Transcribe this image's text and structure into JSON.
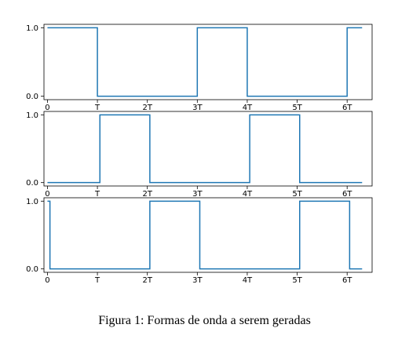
{
  "figure": {
    "caption": "Figura 1: Formas de onda a serem geradas"
  },
  "colors": {
    "line": "#1f77b4",
    "axes": "#000000",
    "background": "#ffffff"
  },
  "chart_data": [
    {
      "type": "line",
      "step": true,
      "x_ticks": [
        "0",
        "T",
        "2T",
        "3T",
        "4T",
        "5T",
        "6T"
      ],
      "y_ticks": [
        "0.0",
        "1.0"
      ],
      "xlim": [
        -0.07,
        6.5
      ],
      "ylim": [
        -0.05,
        1.05
      ],
      "series": [
        {
          "x": [
            0,
            1,
            1,
            3,
            3,
            4,
            4,
            6,
            6,
            6.3
          ],
          "y": [
            1,
            1,
            0,
            0,
            1,
            1,
            0,
            0,
            1,
            1
          ]
        }
      ]
    },
    {
      "type": "line",
      "step": true,
      "x_ticks": [
        "0",
        "T",
        "2T",
        "3T",
        "4T",
        "5T",
        "6T"
      ],
      "y_ticks": [
        "0.0",
        "1.0"
      ],
      "xlim": [
        -0.07,
        6.5
      ],
      "ylim": [
        -0.05,
        1.05
      ],
      "series": [
        {
          "x": [
            0,
            1.05,
            1.05,
            2.05,
            2.05,
            4.05,
            4.05,
            5.05,
            5.05,
            6.3
          ],
          "y": [
            0,
            0,
            1,
            1,
            0,
            0,
            1,
            1,
            0,
            0
          ]
        }
      ]
    },
    {
      "type": "line",
      "step": true,
      "x_ticks": [
        "0",
        "T",
        "2T",
        "3T",
        "4T",
        "5T",
        "6T"
      ],
      "y_ticks": [
        "0.0",
        "1.0"
      ],
      "xlim": [
        -0.07,
        6.5
      ],
      "ylim": [
        -0.05,
        1.05
      ],
      "series": [
        {
          "x": [
            0,
            0.05,
            0.05,
            2.05,
            2.05,
            3.05,
            3.05,
            5.05,
            5.05,
            6.05,
            6.05,
            6.3
          ],
          "y": [
            1,
            1,
            0,
            0,
            1,
            1,
            0,
            0,
            1,
            1,
            0,
            0
          ]
        }
      ]
    }
  ]
}
